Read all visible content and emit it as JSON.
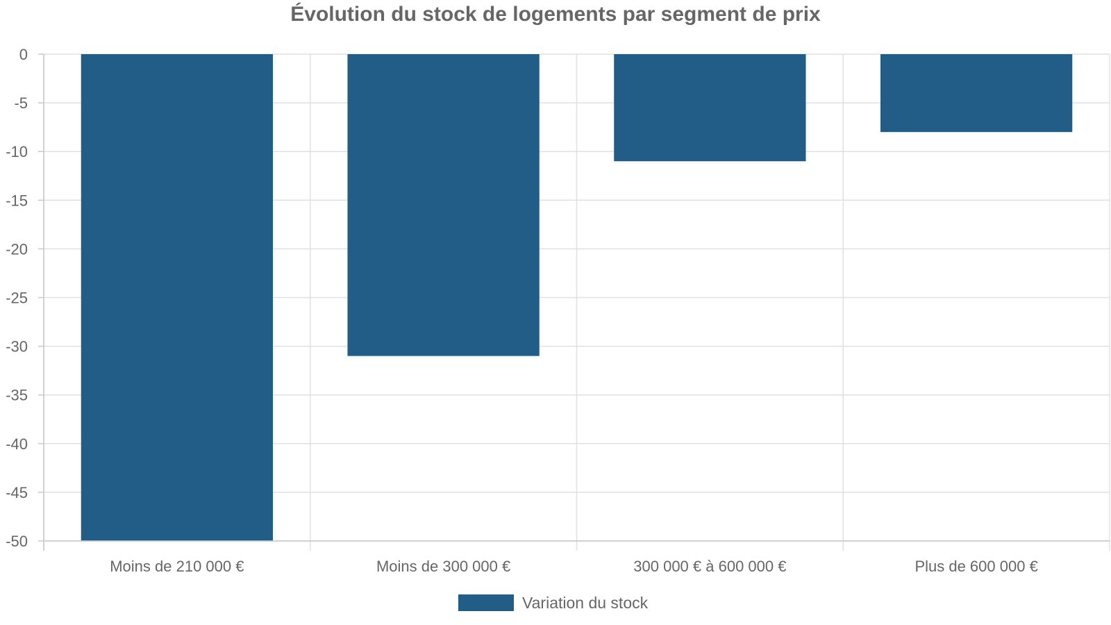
{
  "chart_data": {
    "type": "bar",
    "title": "Évolution du stock de logements par segment de prix",
    "xlabel": "",
    "ylabel": "",
    "categories": [
      "Moins de 210 000 €",
      "Moins de 300 000 €",
      "300 000 € à 600 000 €",
      "Plus de 600 000 €"
    ],
    "series": [
      {
        "name": "Variation du stock",
        "values": [
          -50,
          -31,
          -11,
          -8
        ],
        "color": "#215d87"
      }
    ],
    "ylim": [
      -50,
      0
    ],
    "yticks": [
      0,
      -5,
      -10,
      -15,
      -20,
      -25,
      -30,
      -35,
      -40,
      -45,
      -50
    ],
    "grid": true,
    "legend_position": "bottom-center"
  }
}
